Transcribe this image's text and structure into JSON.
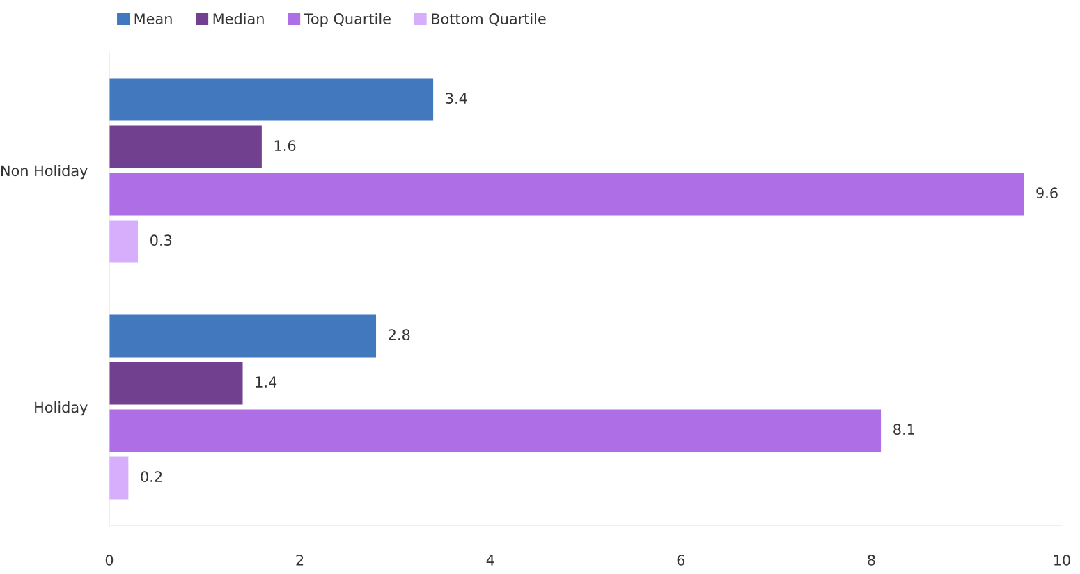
{
  "chart_data": {
    "type": "bar",
    "orientation": "horizontal",
    "categories": [
      "Non Holiday",
      "Holiday"
    ],
    "series": [
      {
        "name": "Mean",
        "color": "#4178be",
        "values": [
          3.4,
          2.8
        ]
      },
      {
        "name": "Median",
        "color": "#71408f",
        "values": [
          1.6,
          1.4
        ]
      },
      {
        "name": "Top Quartile",
        "color": "#ae6ee6",
        "values": [
          9.6,
          8.1
        ]
      },
      {
        "name": "Bottom Quartile",
        "color": "#d7aefb",
        "values": [
          0.3,
          0.2
        ]
      }
    ],
    "xlim": [
      0,
      10
    ],
    "xticks": [
      0,
      2,
      4,
      6,
      8,
      10
    ],
    "data_labels": true,
    "grid": false,
    "legend": "top left"
  }
}
